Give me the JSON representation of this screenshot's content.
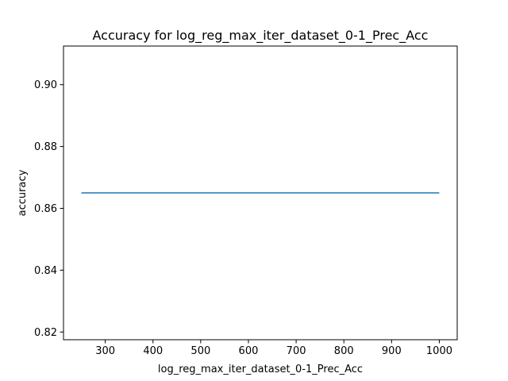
{
  "chart_data": {
    "type": "line",
    "title": "Accuracy for log_reg_max_iter_dataset_0-1_Prec_Acc",
    "xlabel": "log_reg_max_iter_dataset_0-1_Prec_Acc",
    "ylabel": "accuracy",
    "xlim": [
      212.5,
      1037.5
    ],
    "ylim": [
      0.8175,
      0.9125
    ],
    "x_ticks": [
      300,
      400,
      500,
      600,
      700,
      800,
      900,
      1000
    ],
    "x_tick_labels": [
      "300",
      "400",
      "500",
      "600",
      "700",
      "800",
      "900",
      "1000"
    ],
    "y_ticks": [
      0.82,
      0.84,
      0.86,
      0.88,
      0.9
    ],
    "y_tick_labels": [
      "0.82",
      "0.84",
      "0.86",
      "0.88",
      "0.90"
    ],
    "grid": false,
    "legend": "none",
    "series": [
      {
        "color": "#1f77b4",
        "x": [
          250,
          500,
          1000
        ],
        "y": [
          0.865,
          0.865,
          0.865
        ]
      }
    ]
  }
}
